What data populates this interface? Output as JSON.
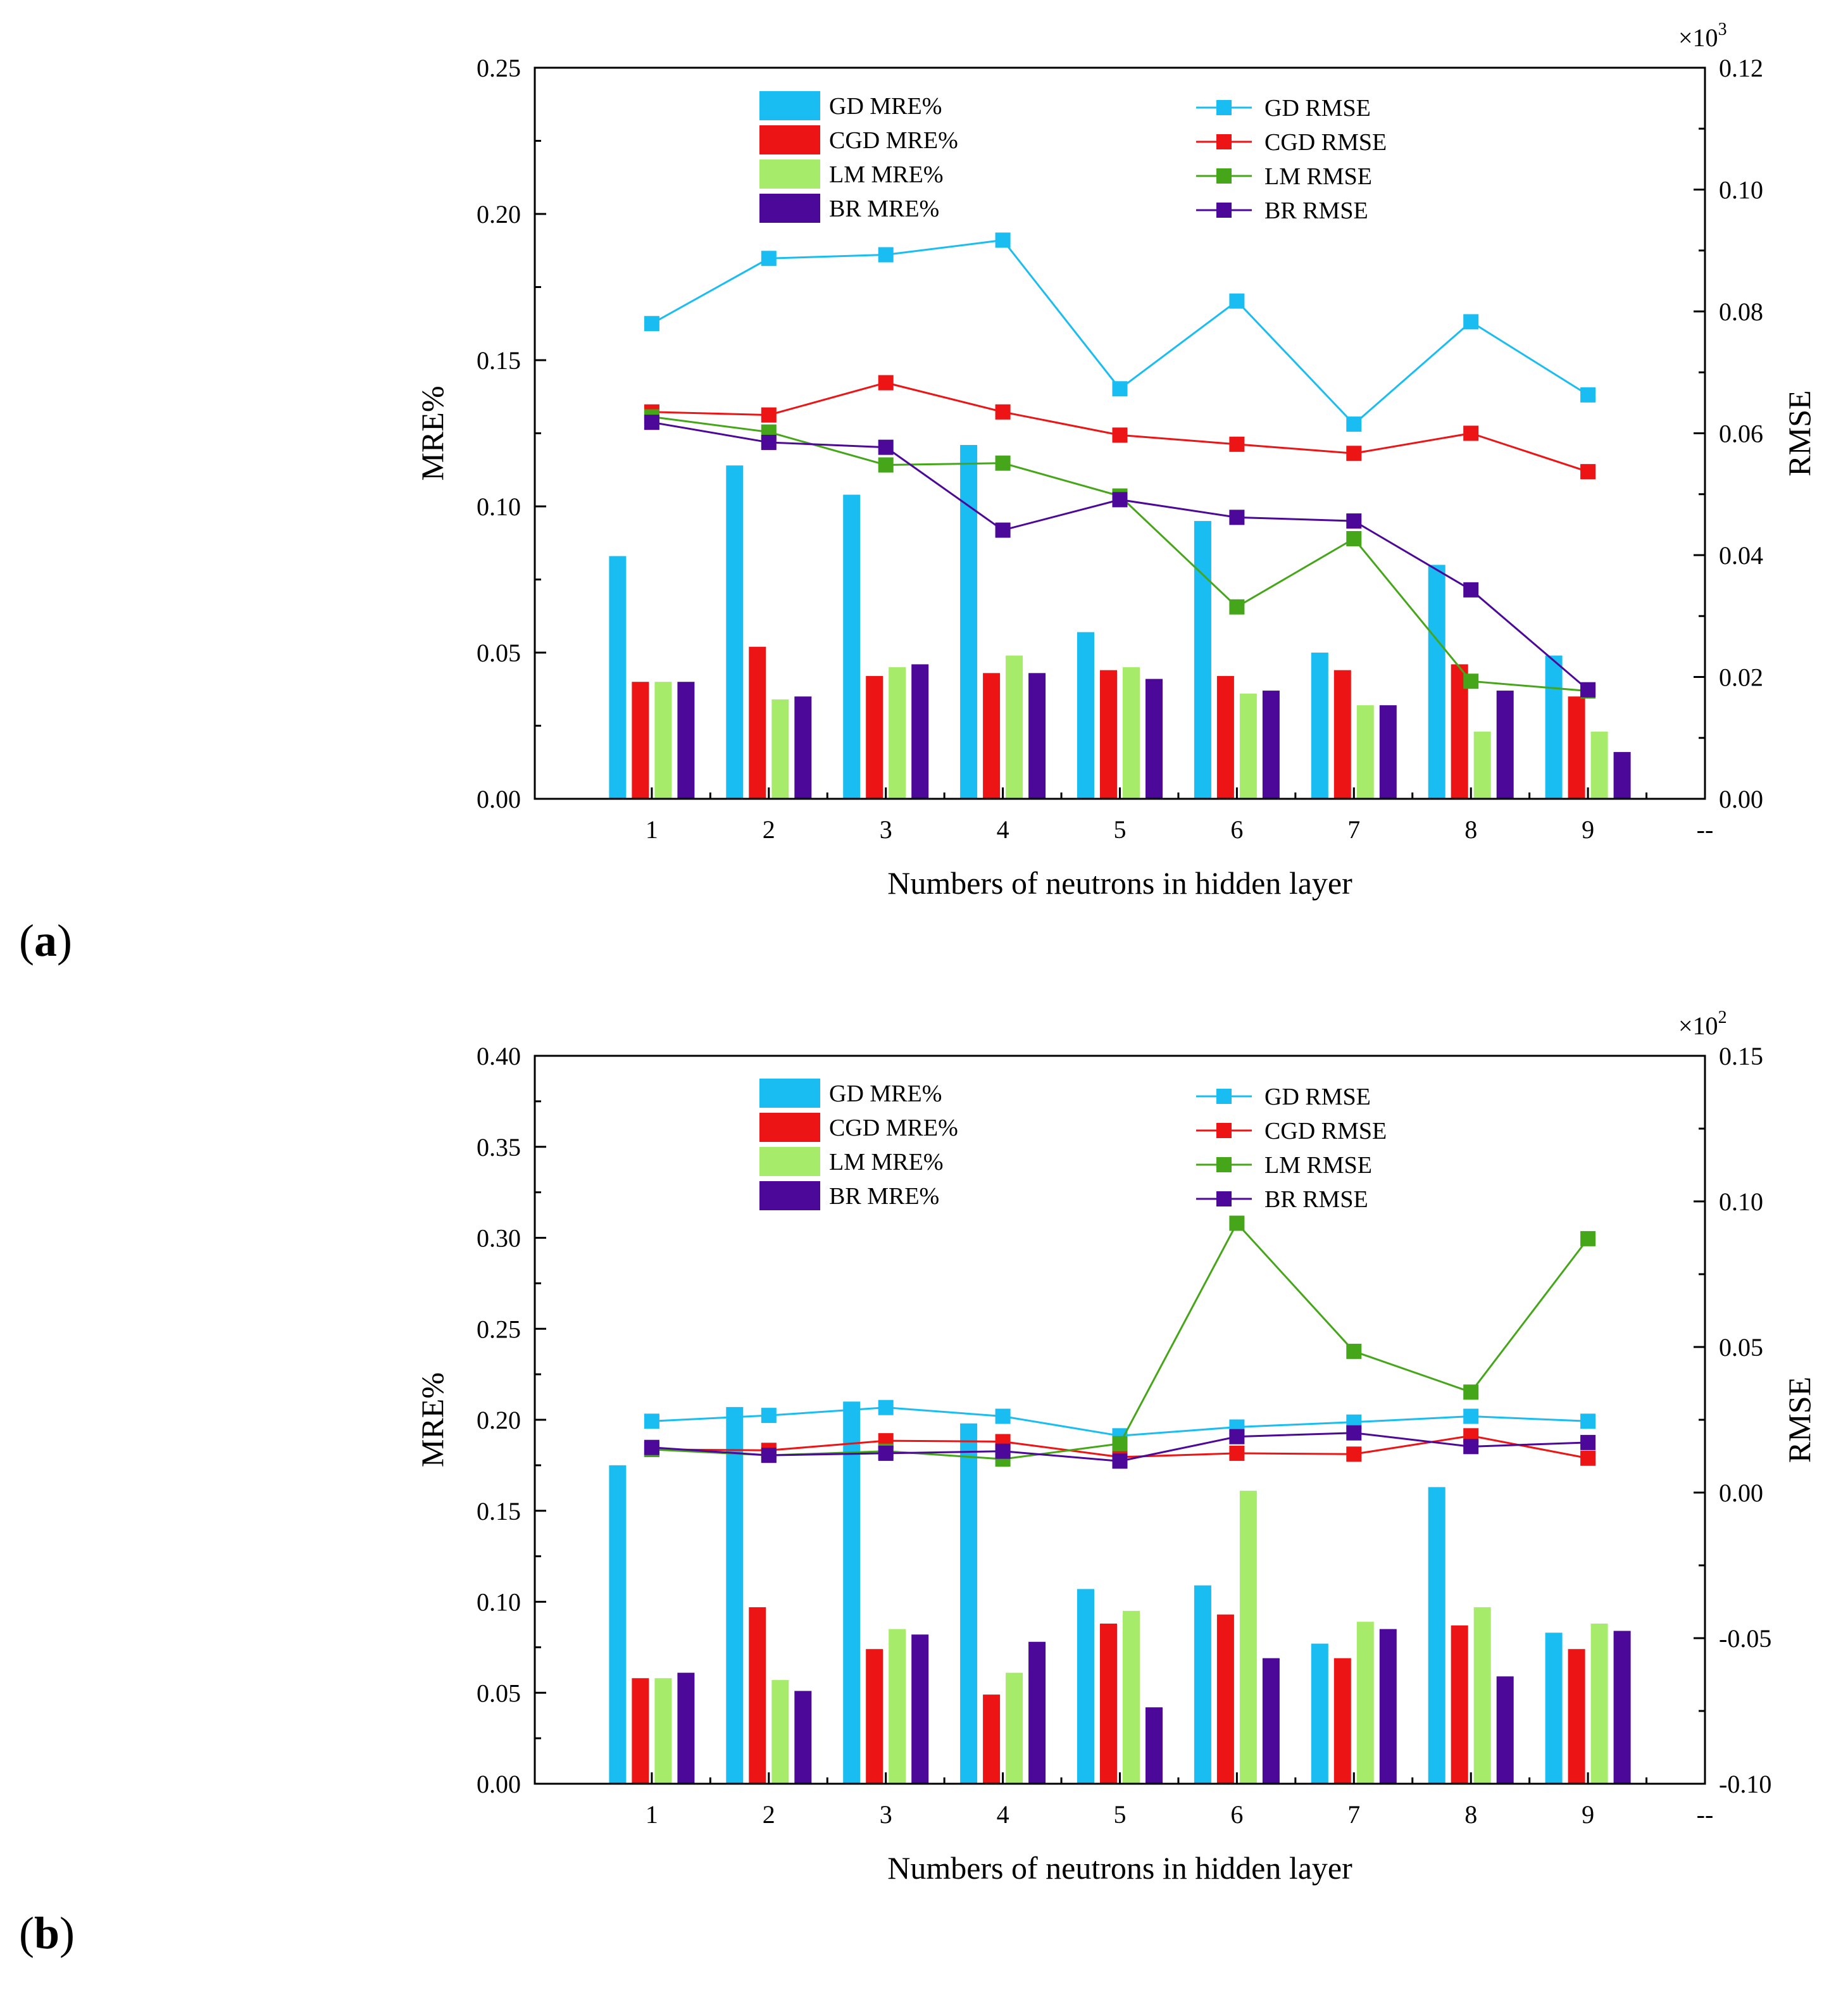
{
  "figure": {
    "panel_labels": [
      "a",
      "b"
    ],
    "colors": {
      "GD": "#19bdf2",
      "CGD": "#ec1414",
      "LM": "#a6ec6a",
      "LM_line": "#45a619",
      "BR": "#4c0898"
    }
  },
  "chart_data": [
    {
      "type": "bar+line (dual axis)",
      "panel": "a",
      "xlabel": "Numbers of neutrons in hidden layer",
      "ylabel_left": "MRE%",
      "ylabel_right": "RMSE",
      "right_multiplier": "×10",
      "right_exponent": "3",
      "categories": [
        "1",
        "2",
        "3",
        "4",
        "5",
        "6",
        "7",
        "8",
        "9"
      ],
      "extra_tick": "--",
      "ylim_left": [
        0,
        0.25
      ],
      "yticks_left": [
        "0.00",
        "0.05",
        "0.10",
        "0.15",
        "0.20",
        "0.25"
      ],
      "ylim_right": [
        0,
        0.12
      ],
      "yticks_right": [
        "0.00",
        "0.02",
        "0.04",
        "0.06",
        "0.08",
        "0.10",
        "0.12"
      ],
      "bar_series": [
        {
          "name": "GD MRE%",
          "color_key": "GD",
          "values": [
            0.083,
            0.114,
            0.104,
            0.121,
            0.057,
            0.095,
            0.05,
            0.08,
            0.049
          ]
        },
        {
          "name": "CGD MRE%",
          "color_key": "CGD",
          "values": [
            0.04,
            0.052,
            0.042,
            0.043,
            0.044,
            0.042,
            0.044,
            0.046,
            0.035
          ]
        },
        {
          "name": "LM MRE%",
          "color_key": "LM",
          "values": [
            0.04,
            0.034,
            0.045,
            0.049,
            0.045,
            0.036,
            0.032,
            0.023,
            0.023
          ]
        },
        {
          "name": "BR MRE%",
          "color_key": "BR",
          "values": [
            0.04,
            0.035,
            0.046,
            0.043,
            0.041,
            0.037,
            0.032,
            0.037,
            0.016
          ]
        }
      ],
      "line_series": [
        {
          "name": "GD RMSE",
          "color_key": "GD",
          "values": [
            0.078,
            0.0887,
            0.0893,
            0.0917,
            0.0673,
            0.0817,
            0.0615,
            0.0783,
            0.0663
          ]
        },
        {
          "name": "CGD RMSE",
          "color_key": "CGD",
          "values": [
            0.0635,
            0.063,
            0.0683,
            0.0635,
            0.0597,
            0.0582,
            0.0567,
            0.06,
            0.0537
          ]
        },
        {
          "name": "LM RMSE",
          "color_key": "LM_line",
          "values": [
            0.0627,
            0.0602,
            0.0548,
            0.0551,
            0.0497,
            0.0315,
            0.0427,
            0.0193,
            0.0177
          ]
        },
        {
          "name": "BR RMSE",
          "color_key": "BR",
          "values": [
            0.0618,
            0.0585,
            0.0577,
            0.0441,
            0.0491,
            0.0462,
            0.0456,
            0.0343,
            0.0179
          ]
        }
      ]
    },
    {
      "type": "bar+line (dual axis)",
      "panel": "b",
      "xlabel": "Numbers of neutrons in hidden layer",
      "ylabel_left": "MRE%",
      "ylabel_right": "RMSE",
      "right_multiplier": "×10",
      "right_exponent": "2",
      "categories": [
        "1",
        "2",
        "3",
        "4",
        "5",
        "6",
        "7",
        "8",
        "9"
      ],
      "extra_tick": "--",
      "ylim_left": [
        0,
        0.4
      ],
      "yticks_left": [
        "0.00",
        "0.05",
        "0.10",
        "0.15",
        "0.20",
        "0.25",
        "0.30",
        "0.35",
        "0.40"
      ],
      "ylim_right": [
        -0.1,
        0.15
      ],
      "yticks_right": [
        "-0.10",
        "-0.05",
        "0.00",
        "0.05",
        "0.10",
        "0.15"
      ],
      "bar_series": [
        {
          "name": "GD MRE%",
          "color_key": "GD",
          "values": [
            0.175,
            0.207,
            0.21,
            0.198,
            0.107,
            0.109,
            0.077,
            0.163,
            0.083
          ]
        },
        {
          "name": "CGD MRE%",
          "color_key": "CGD",
          "values": [
            0.058,
            0.097,
            0.074,
            0.049,
            0.088,
            0.093,
            0.069,
            0.087,
            0.074
          ]
        },
        {
          "name": "LM MRE%",
          "color_key": "LM",
          "values": [
            0.058,
            0.057,
            0.085,
            0.061,
            0.095,
            0.161,
            0.089,
            0.097,
            0.088
          ]
        },
        {
          "name": "BR MRE%",
          "color_key": "BR",
          "values": [
            0.061,
            0.051,
            0.082,
            0.078,
            0.042,
            0.069,
            0.085,
            0.059,
            0.084
          ]
        }
      ],
      "line_series": [
        {
          "name": "GD RMSE",
          "color_key": "GD",
          "values": [
            0.0245,
            0.0265,
            0.0292,
            0.0262,
            0.0195,
            0.0225,
            0.0242,
            0.0262,
            0.0245
          ]
        },
        {
          "name": "CGD RMSE",
          "color_key": "CGD",
          "values": [
            0.0148,
            0.0145,
            0.0178,
            0.0175,
            0.0122,
            0.0135,
            0.0132,
            0.0195,
            0.0118
          ]
        },
        {
          "name": "LM RMSE",
          "color_key": "LM_line",
          "values": [
            0.0148,
            0.0128,
            0.0142,
            0.0115,
            0.0168,
            0.0925,
            0.0485,
            0.0345,
            0.0872
          ]
        },
        {
          "name": "BR RMSE",
          "color_key": "BR",
          "values": [
            0.0155,
            0.0128,
            0.0135,
            0.0142,
            0.0108,
            0.0192,
            0.0205,
            0.0158,
            0.0172
          ]
        }
      ]
    }
  ]
}
